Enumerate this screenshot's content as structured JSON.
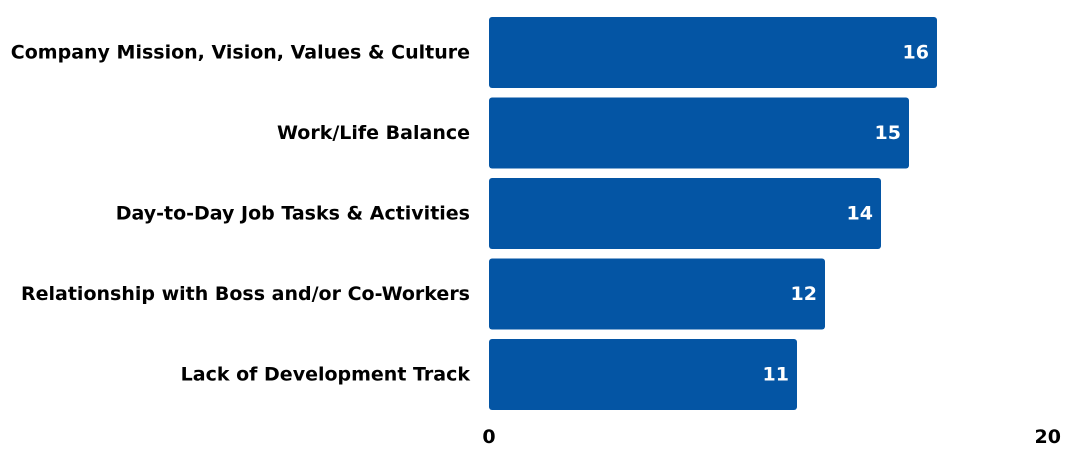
{
  "chart_data": {
    "type": "bar",
    "orientation": "horizontal",
    "categories": [
      "Company Mission, Vision, Values & Culture",
      "Work/Life Balance",
      "Day-to-Day Job Tasks & Activities",
      "Relationship with Boss and/or Co-Workers",
      "Lack of Development Track"
    ],
    "values": [
      16,
      15,
      14,
      12,
      11
    ],
    "xlim": [
      0,
      20
    ],
    "x_ticks": [
      "0",
      "20"
    ],
    "data_labels": true,
    "grid": false,
    "legend": "none",
    "title": "",
    "xlabel": "",
    "ylabel": ""
  },
  "colors": {
    "bar": "#0455a4",
    "label_text": "#000000",
    "value_text": "#ffffff"
  }
}
